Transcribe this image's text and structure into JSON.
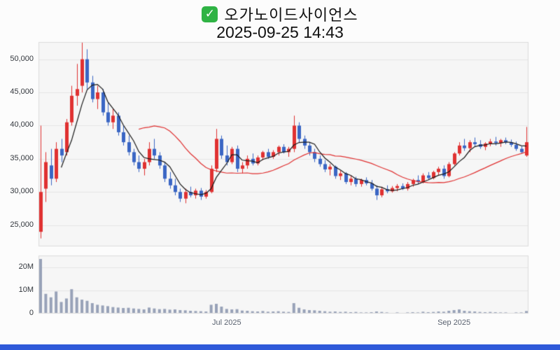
{
  "header": {
    "title": "오가노이드사이언스",
    "timestamp": "2025-09-25 14:43",
    "check_icon": "✓"
  },
  "chart_data": {
    "type": "candlestick_with_volume",
    "title": "오가노이드사이언스",
    "subtitle": "2025-09-25 14:43",
    "legend": "none",
    "grid": true,
    "price_axis": {
      "min": 21800,
      "max": 52600,
      "ticks": [
        {
          "value": 50000,
          "label": "50,000"
        },
        {
          "value": 45000,
          "label": "45,000"
        },
        {
          "value": 40000,
          "label": "40,000"
        },
        {
          "value": 35000,
          "label": "35,000"
        },
        {
          "value": 30000,
          "label": "30,000"
        },
        {
          "value": 25000,
          "label": "25,000"
        }
      ]
    },
    "volume_axis": {
      "max": 25000000,
      "ticks": [
        {
          "value": 20000000,
          "label": "20M"
        },
        {
          "value": 10000000,
          "label": "10M"
        },
        {
          "value": 0,
          "label": "0"
        }
      ]
    },
    "x_axis": {
      "ticks": [
        {
          "index": 36,
          "label": "Jul 2025"
        },
        {
          "index": 80,
          "label": "Sep 2025"
        }
      ]
    },
    "moving_averages": {
      "fast_window": 5,
      "slow_window": 20
    },
    "colors": {
      "up": "#e03131",
      "down": "#3a66c4",
      "ma_fast": "#1a1a1a",
      "ma_slow": "#e03131",
      "volume": "#98a2b8",
      "plot_bg": "#f6f6f6",
      "plot_border": "#dcdcdc",
      "grid": "#e5e5e5",
      "accent_bar": "#2e59d9",
      "check_green": "#2fb344"
    },
    "candles": [
      [
        24000,
        40000,
        23000,
        30000,
        23500000
      ],
      [
        30500,
        36000,
        28500,
        34500,
        8500000
      ],
      [
        34000,
        36500,
        31000,
        32000,
        7000000
      ],
      [
        32000,
        37500,
        31500,
        36500,
        9500000
      ],
      [
        36500,
        38000,
        34500,
        35500,
        5000000
      ],
      [
        36000,
        41000,
        35500,
        40500,
        6500000
      ],
      [
        40500,
        46000,
        40000,
        44500,
        10500000
      ],
      [
        44500,
        49300,
        43000,
        45500,
        7000000
      ],
      [
        46000,
        52500,
        45000,
        50000,
        6000000
      ],
      [
        50000,
        51500,
        45500,
        46500,
        5500000
      ],
      [
        46500,
        47500,
        43500,
        44000,
        4500000
      ],
      [
        44000,
        46000,
        42500,
        45000,
        3800000
      ],
      [
        45000,
        45500,
        41500,
        42000,
        3500000
      ],
      [
        42000,
        43500,
        40000,
        40500,
        3200000
      ],
      [
        40500,
        42500,
        39500,
        41500,
        2800000
      ],
      [
        41500,
        42000,
        38500,
        39000,
        2600000
      ],
      [
        39000,
        40000,
        37000,
        37500,
        2400000
      ],
      [
        37500,
        38500,
        35500,
        36000,
        2500000
      ],
      [
        36000,
        36500,
        34000,
        34500,
        2200000
      ],
      [
        34500,
        35500,
        33000,
        33500,
        2000000
      ],
      [
        33500,
        35000,
        32500,
        34500,
        1800000
      ],
      [
        34500,
        37500,
        34000,
        36500,
        2600000
      ],
      [
        36500,
        38000,
        35000,
        35500,
        2200000
      ],
      [
        35500,
        36000,
        33500,
        34000,
        1900000
      ],
      [
        34000,
        34500,
        31500,
        32000,
        2000000
      ],
      [
        32000,
        33000,
        30500,
        31000,
        1700000
      ],
      [
        31000,
        32000,
        29500,
        30000,
        1800000
      ],
      [
        30000,
        30500,
        28500,
        29000,
        1500000
      ],
      [
        29000,
        30500,
        28300,
        30000,
        1400000
      ],
      [
        30000,
        30800,
        29200,
        29500,
        1200000
      ],
      [
        29500,
        30500,
        29000,
        30200,
        1100000
      ],
      [
        30200,
        30600,
        28800,
        29300,
        1000000
      ],
      [
        29300,
        30300,
        29000,
        30000,
        900000
      ],
      [
        30000,
        34000,
        29800,
        33500,
        3800000
      ],
      [
        33500,
        39500,
        33000,
        38000,
        4200000
      ],
      [
        38000,
        38500,
        35000,
        35500,
        3000000
      ],
      [
        35500,
        37000,
        34000,
        34500,
        2000000
      ],
      [
        34500,
        36800,
        34200,
        36500,
        1800000
      ],
      [
        36500,
        37000,
        33000,
        33500,
        1900000
      ],
      [
        33500,
        34500,
        32800,
        34000,
        1300000
      ],
      [
        34000,
        35500,
        33500,
        35000,
        1200000
      ],
      [
        35000,
        35800,
        34000,
        34300,
        1000000
      ],
      [
        34300,
        35500,
        34000,
        35200,
        900000
      ],
      [
        35200,
        36200,
        34800,
        36000,
        1100000
      ],
      [
        36000,
        36500,
        35000,
        35300,
        800000
      ],
      [
        35300,
        36300,
        35000,
        36000,
        900000
      ],
      [
        36000,
        37000,
        35500,
        36800,
        1000000
      ],
      [
        36800,
        37200,
        35800,
        36000,
        800000
      ],
      [
        36000,
        36800,
        35300,
        36500,
        700000
      ],
      [
        36500,
        41500,
        36000,
        40000,
        4500000
      ],
      [
        40000,
        40500,
        37500,
        38000,
        2500000
      ],
      [
        38000,
        38500,
        36500,
        37000,
        1800000
      ],
      [
        37000,
        37500,
        35500,
        36000,
        1500000
      ],
      [
        36000,
        36500,
        34500,
        35000,
        1400000
      ],
      [
        35000,
        35500,
        33800,
        34200,
        1200000
      ],
      [
        34200,
        34800,
        33000,
        33400,
        1000000
      ],
      [
        33400,
        34200,
        32500,
        33800,
        800000
      ],
      [
        33800,
        34000,
        32000,
        32400,
        900000
      ],
      [
        32400,
        33200,
        31800,
        32800,
        700000
      ],
      [
        32800,
        33000,
        31200,
        31500,
        800000
      ],
      [
        31500,
        32500,
        31000,
        32000,
        600000
      ],
      [
        32000,
        32300,
        30800,
        31200,
        700000
      ],
      [
        31200,
        32000,
        30800,
        31800,
        500000
      ],
      [
        31800,
        32200,
        31000,
        31300,
        500000
      ],
      [
        31300,
        31800,
        30200,
        30500,
        600000
      ],
      [
        30500,
        31000,
        28800,
        29500,
        900000
      ],
      [
        29500,
        30800,
        29200,
        30400,
        700000
      ],
      [
        30400,
        31000,
        29800,
        30100,
        500000
      ],
      [
        30100,
        30900,
        29900,
        30600,
        400000
      ],
      [
        30600,
        31200,
        30100,
        30900,
        500000
      ],
      [
        30900,
        31300,
        30300,
        30500,
        400000
      ],
      [
        30500,
        31500,
        30200,
        31200,
        500000
      ],
      [
        31200,
        32000,
        30800,
        31800,
        600000
      ],
      [
        31800,
        32500,
        31200,
        31500,
        500000
      ],
      [
        31500,
        32800,
        31300,
        32500,
        800000
      ],
      [
        32500,
        33000,
        31800,
        32100,
        600000
      ],
      [
        32100,
        33200,
        31900,
        33000,
        700000
      ],
      [
        33000,
        33800,
        32500,
        33500,
        900000
      ],
      [
        33500,
        34000,
        32000,
        32400,
        800000
      ],
      [
        32400,
        34500,
        32200,
        34200,
        1200000
      ],
      [
        34200,
        36000,
        34000,
        35800,
        1500000
      ],
      [
        35800,
        37500,
        35500,
        37000,
        1800000
      ],
      [
        37000,
        38000,
        36200,
        36600,
        1200000
      ],
      [
        36600,
        37800,
        36000,
        37500,
        1000000
      ],
      [
        37500,
        38200,
        36800,
        37200,
        900000
      ],
      [
        37200,
        37800,
        36500,
        36800,
        700000
      ],
      [
        36800,
        37500,
        36300,
        37300,
        600000
      ],
      [
        37300,
        38000,
        36900,
        37600,
        700000
      ],
      [
        37600,
        38300,
        37000,
        37400,
        600000
      ],
      [
        37400,
        38000,
        36800,
        37800,
        500000
      ],
      [
        37800,
        38200,
        37200,
        37500,
        500000
      ],
      [
        37500,
        37900,
        36800,
        37100,
        400000
      ],
      [
        37100,
        37600,
        36200,
        36500,
        500000
      ],
      [
        36500,
        36900,
        35800,
        36000,
        500000
      ],
      [
        35500,
        39800,
        35300,
        37500,
        1100000
      ]
    ]
  }
}
